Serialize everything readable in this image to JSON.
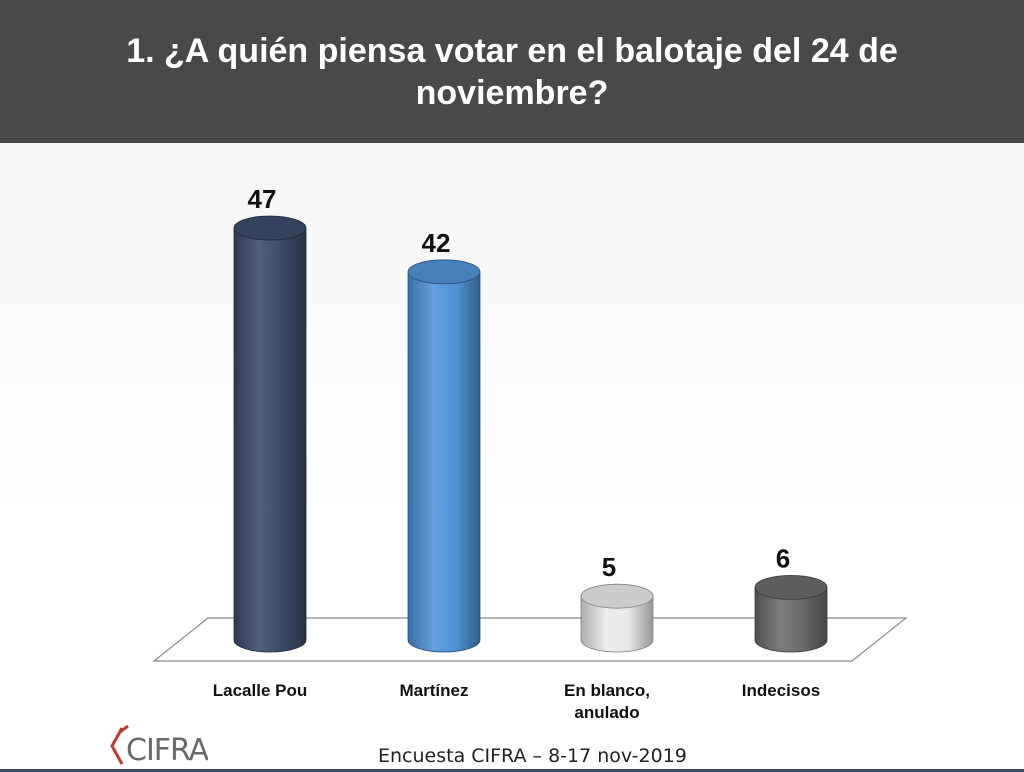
{
  "header": {
    "title": "1. ¿A quién piensa votar en el balotaje del 24 de noviembre?"
  },
  "source": "Encuesta CIFRA – 8-17 nov-2019",
  "logo": {
    "text": "CIFRA"
  },
  "colors": {
    "header_bg": "#494949",
    "lacalle": "#3a4c6a",
    "martinez": "#4f93d6",
    "blanco": "#e8e8e8",
    "indecisos": "#6b6b6b"
  },
  "chart_data": {
    "type": "bar",
    "style": "3d-cylinder",
    "title": "1. ¿A quién piensa votar en el balotaje del 24 de noviembre?",
    "categories": [
      "Lacalle Pou",
      "Martínez",
      "En blanco, anulado",
      "Indecisos"
    ],
    "category_lines": [
      [
        "Lacalle Pou"
      ],
      [
        "Martínez"
      ],
      [
        "En blanco,",
        "anulado"
      ],
      [
        "Indecisos"
      ]
    ],
    "values": [
      47,
      42,
      5,
      6
    ],
    "data_labels": [
      "47",
      "42",
      "5",
      "6"
    ],
    "colors": [
      "#3a4c6a",
      "#4f93d6",
      "#e8e8e8",
      "#6b6b6b"
    ],
    "ylim": [
      0,
      50
    ],
    "grid": false,
    "legend": "none"
  }
}
